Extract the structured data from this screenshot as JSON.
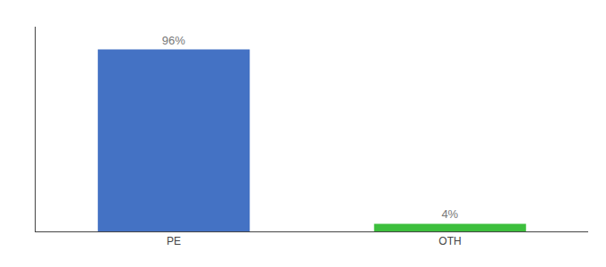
{
  "chart_data": {
    "type": "bar",
    "categories": [
      "PE",
      "OTH"
    ],
    "values": [
      96,
      4
    ],
    "value_labels": [
      "96%",
      "4%"
    ],
    "colors": [
      "#4472c4",
      "#3dbf3d"
    ],
    "ylim": [
      0,
      108
    ],
    "data_labels": true,
    "tick_labels": "x",
    "grid": false
  }
}
